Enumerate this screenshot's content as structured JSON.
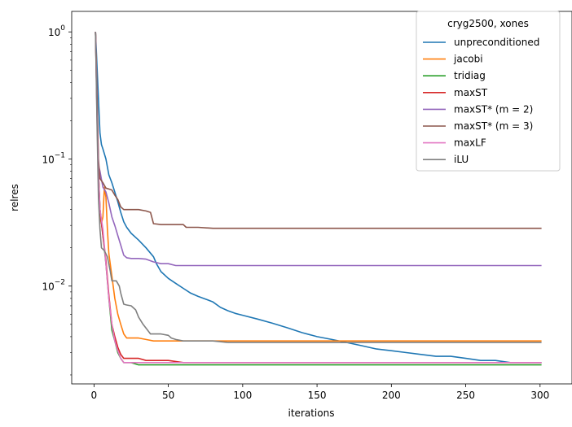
{
  "chart_data": {
    "type": "line",
    "xlabel": "iterations",
    "ylabel": "relres",
    "xlim": [
      -15,
      316
    ],
    "ylim": [
      0.0017,
      1.45
    ],
    "yscale": "log",
    "grid": false,
    "legend_title": "cryg2500, xones",
    "legend_position": "top-right",
    "x_ticks": [
      0,
      50,
      100,
      150,
      200,
      250,
      300
    ],
    "x_tick_labels": [
      "0",
      "50",
      "100",
      "150",
      "200",
      "250",
      "300"
    ],
    "y_ticks": [
      1,
      0.1,
      0.01
    ],
    "y_tick_labels": [
      "10^0",
      "10^-1",
      "10^-2"
    ],
    "series": [
      {
        "name": "unpreconditioned",
        "color": "#1f77b4",
        "points": [
          [
            1,
            1.0
          ],
          [
            3,
            0.3
          ],
          [
            4,
            0.16
          ],
          [
            5,
            0.13
          ],
          [
            6,
            0.12
          ],
          [
            8,
            0.1
          ],
          [
            10,
            0.075
          ],
          [
            12,
            0.065
          ],
          [
            14,
            0.055
          ],
          [
            16,
            0.046
          ],
          [
            18,
            0.038
          ],
          [
            20,
            0.032
          ],
          [
            22,
            0.029
          ],
          [
            25,
            0.026
          ],
          [
            30,
            0.023
          ],
          [
            35,
            0.02
          ],
          [
            40,
            0.017
          ],
          [
            42,
            0.015
          ],
          [
            45,
            0.013
          ],
          [
            50,
            0.0115
          ],
          [
            55,
            0.0105
          ],
          [
            60,
            0.0096
          ],
          [
            65,
            0.0088
          ],
          [
            70,
            0.0083
          ],
          [
            75,
            0.0079
          ],
          [
            80,
            0.0075
          ],
          [
            85,
            0.0068
          ],
          [
            90,
            0.0064
          ],
          [
            95,
            0.0061
          ],
          [
            100,
            0.0059
          ],
          [
            110,
            0.0055
          ],
          [
            120,
            0.0051
          ],
          [
            130,
            0.0047
          ],
          [
            140,
            0.0043
          ],
          [
            150,
            0.004
          ],
          [
            160,
            0.0038
          ],
          [
            170,
            0.0036
          ],
          [
            180,
            0.0034
          ],
          [
            190,
            0.0032
          ],
          [
            200,
            0.0031
          ],
          [
            210,
            0.003
          ],
          [
            220,
            0.0029
          ],
          [
            230,
            0.0028
          ],
          [
            240,
            0.0028
          ],
          [
            250,
            0.0027
          ],
          [
            260,
            0.0026
          ],
          [
            270,
            0.0026
          ],
          [
            280,
            0.0025
          ],
          [
            290,
            0.0025
          ],
          [
            301,
            0.0025
          ]
        ]
      },
      {
        "name": "jacobi",
        "color": "#ff7f0e",
        "points": [
          [
            1,
            1.0
          ],
          [
            2,
            0.3
          ],
          [
            3,
            0.08
          ],
          [
            4,
            0.035
          ],
          [
            5,
            0.031
          ],
          [
            6,
            0.035
          ],
          [
            7,
            0.06
          ],
          [
            8,
            0.05
          ],
          [
            9,
            0.028
          ],
          [
            10,
            0.018
          ],
          [
            12,
            0.012
          ],
          [
            14,
            0.008
          ],
          [
            16,
            0.006
          ],
          [
            18,
            0.005
          ],
          [
            20,
            0.0042
          ],
          [
            22,
            0.0039
          ],
          [
            25,
            0.0039
          ],
          [
            30,
            0.0039
          ],
          [
            35,
            0.0038
          ],
          [
            40,
            0.0037
          ],
          [
            45,
            0.0037
          ],
          [
            50,
            0.0037
          ],
          [
            60,
            0.0037
          ],
          [
            100,
            0.0037
          ],
          [
            150,
            0.0037
          ],
          [
            200,
            0.0037
          ],
          [
            250,
            0.0037
          ],
          [
            301,
            0.0037
          ]
        ]
      },
      {
        "name": "tridiag",
        "color": "#2ca02c",
        "points": [
          [
            1,
            1.0
          ],
          [
            2,
            0.25
          ],
          [
            3,
            0.08
          ],
          [
            4,
            0.04
          ],
          [
            6,
            0.025
          ],
          [
            8,
            0.015
          ],
          [
            10,
            0.008
          ],
          [
            12,
            0.0045
          ],
          [
            14,
            0.0037
          ],
          [
            16,
            0.003
          ],
          [
            18,
            0.0027
          ],
          [
            20,
            0.0025
          ],
          [
            25,
            0.0025
          ],
          [
            30,
            0.0024
          ],
          [
            40,
            0.0024
          ],
          [
            100,
            0.0024
          ],
          [
            200,
            0.0024
          ],
          [
            301,
            0.0024
          ]
        ]
      },
      {
        "name": "maxST",
        "color": "#d62728",
        "points": [
          [
            1,
            1.0
          ],
          [
            2,
            0.25
          ],
          [
            3,
            0.08
          ],
          [
            4,
            0.04
          ],
          [
            6,
            0.025
          ],
          [
            8,
            0.016
          ],
          [
            10,
            0.0085
          ],
          [
            12,
            0.005
          ],
          [
            14,
            0.004
          ],
          [
            16,
            0.0033
          ],
          [
            18,
            0.0029
          ],
          [
            20,
            0.0027
          ],
          [
            25,
            0.0027
          ],
          [
            30,
            0.0027
          ],
          [
            35,
            0.0026
          ],
          [
            40,
            0.0026
          ],
          [
            50,
            0.0026
          ],
          [
            60,
            0.0025
          ],
          [
            100,
            0.0025
          ],
          [
            200,
            0.0025
          ],
          [
            301,
            0.0025
          ]
        ]
      },
      {
        "name": "maxST* (m = 2)",
        "color": "#9467bd",
        "points": [
          [
            1,
            1.0
          ],
          [
            2,
            0.3
          ],
          [
            3,
            0.09
          ],
          [
            4,
            0.08
          ],
          [
            6,
            0.06
          ],
          [
            8,
            0.055
          ],
          [
            10,
            0.045
          ],
          [
            12,
            0.035
          ],
          [
            14,
            0.03
          ],
          [
            16,
            0.025
          ],
          [
            18,
            0.021
          ],
          [
            20,
            0.0175
          ],
          [
            22,
            0.0167
          ],
          [
            25,
            0.0165
          ],
          [
            30,
            0.0165
          ],
          [
            35,
            0.0163
          ],
          [
            40,
            0.0155
          ],
          [
            45,
            0.015
          ],
          [
            50,
            0.015
          ],
          [
            55,
            0.0145
          ],
          [
            60,
            0.0145
          ],
          [
            100,
            0.0145
          ],
          [
            200,
            0.0145
          ],
          [
            301,
            0.0145
          ]
        ]
      },
      {
        "name": "maxST* (m = 3)",
        "color": "#8c564b",
        "points": [
          [
            1,
            1.0
          ],
          [
            2,
            0.35
          ],
          [
            3,
            0.1
          ],
          [
            4,
            0.07
          ],
          [
            6,
            0.065
          ],
          [
            8,
            0.059
          ],
          [
            10,
            0.058
          ],
          [
            12,
            0.057
          ],
          [
            14,
            0.052
          ],
          [
            16,
            0.048
          ],
          [
            18,
            0.042
          ],
          [
            20,
            0.04
          ],
          [
            25,
            0.04
          ],
          [
            30,
            0.04
          ],
          [
            35,
            0.039
          ],
          [
            38,
            0.038
          ],
          [
            40,
            0.031
          ],
          [
            45,
            0.0305
          ],
          [
            50,
            0.0305
          ],
          [
            55,
            0.0305
          ],
          [
            60,
            0.0305
          ],
          [
            62,
            0.029
          ],
          [
            70,
            0.029
          ],
          [
            80,
            0.0285
          ],
          [
            100,
            0.0285
          ],
          [
            200,
            0.0285
          ],
          [
            301,
            0.0285
          ]
        ]
      },
      {
        "name": "maxLF",
        "color": "#e377c2",
        "points": [
          [
            1,
            1.0
          ],
          [
            2,
            0.22
          ],
          [
            3,
            0.075
          ],
          [
            4,
            0.04
          ],
          [
            6,
            0.028
          ],
          [
            8,
            0.015
          ],
          [
            10,
            0.008
          ],
          [
            12,
            0.005
          ],
          [
            14,
            0.0037
          ],
          [
            16,
            0.0031
          ],
          [
            18,
            0.0027
          ],
          [
            20,
            0.0025
          ],
          [
            25,
            0.0025
          ],
          [
            30,
            0.0025
          ],
          [
            50,
            0.0025
          ],
          [
            100,
            0.0025
          ],
          [
            200,
            0.0025
          ],
          [
            301,
            0.0025
          ]
        ]
      },
      {
        "name": "iLU",
        "color": "#7f7f7f",
        "points": [
          [
            1,
            1.0
          ],
          [
            2,
            0.2
          ],
          [
            3,
            0.05
          ],
          [
            4,
            0.028
          ],
          [
            5,
            0.02
          ],
          [
            7,
            0.019
          ],
          [
            9,
            0.017
          ],
          [
            11,
            0.013
          ],
          [
            12,
            0.011
          ],
          [
            15,
            0.011
          ],
          [
            17,
            0.01
          ],
          [
            18,
            0.0088
          ],
          [
            20,
            0.0072
          ],
          [
            22,
            0.0071
          ],
          [
            25,
            0.007
          ],
          [
            28,
            0.0065
          ],
          [
            30,
            0.0057
          ],
          [
            33,
            0.005
          ],
          [
            36,
            0.0045
          ],
          [
            38,
            0.0042
          ],
          [
            45,
            0.0042
          ],
          [
            50,
            0.0041
          ],
          [
            52,
            0.0039
          ],
          [
            55,
            0.0038
          ],
          [
            60,
            0.0037
          ],
          [
            70,
            0.0037
          ],
          [
            80,
            0.0037
          ],
          [
            90,
            0.0036
          ],
          [
            100,
            0.0036
          ],
          [
            150,
            0.0036
          ],
          [
            200,
            0.0036
          ],
          [
            250,
            0.0036
          ],
          [
            301,
            0.0036
          ]
        ]
      }
    ]
  }
}
